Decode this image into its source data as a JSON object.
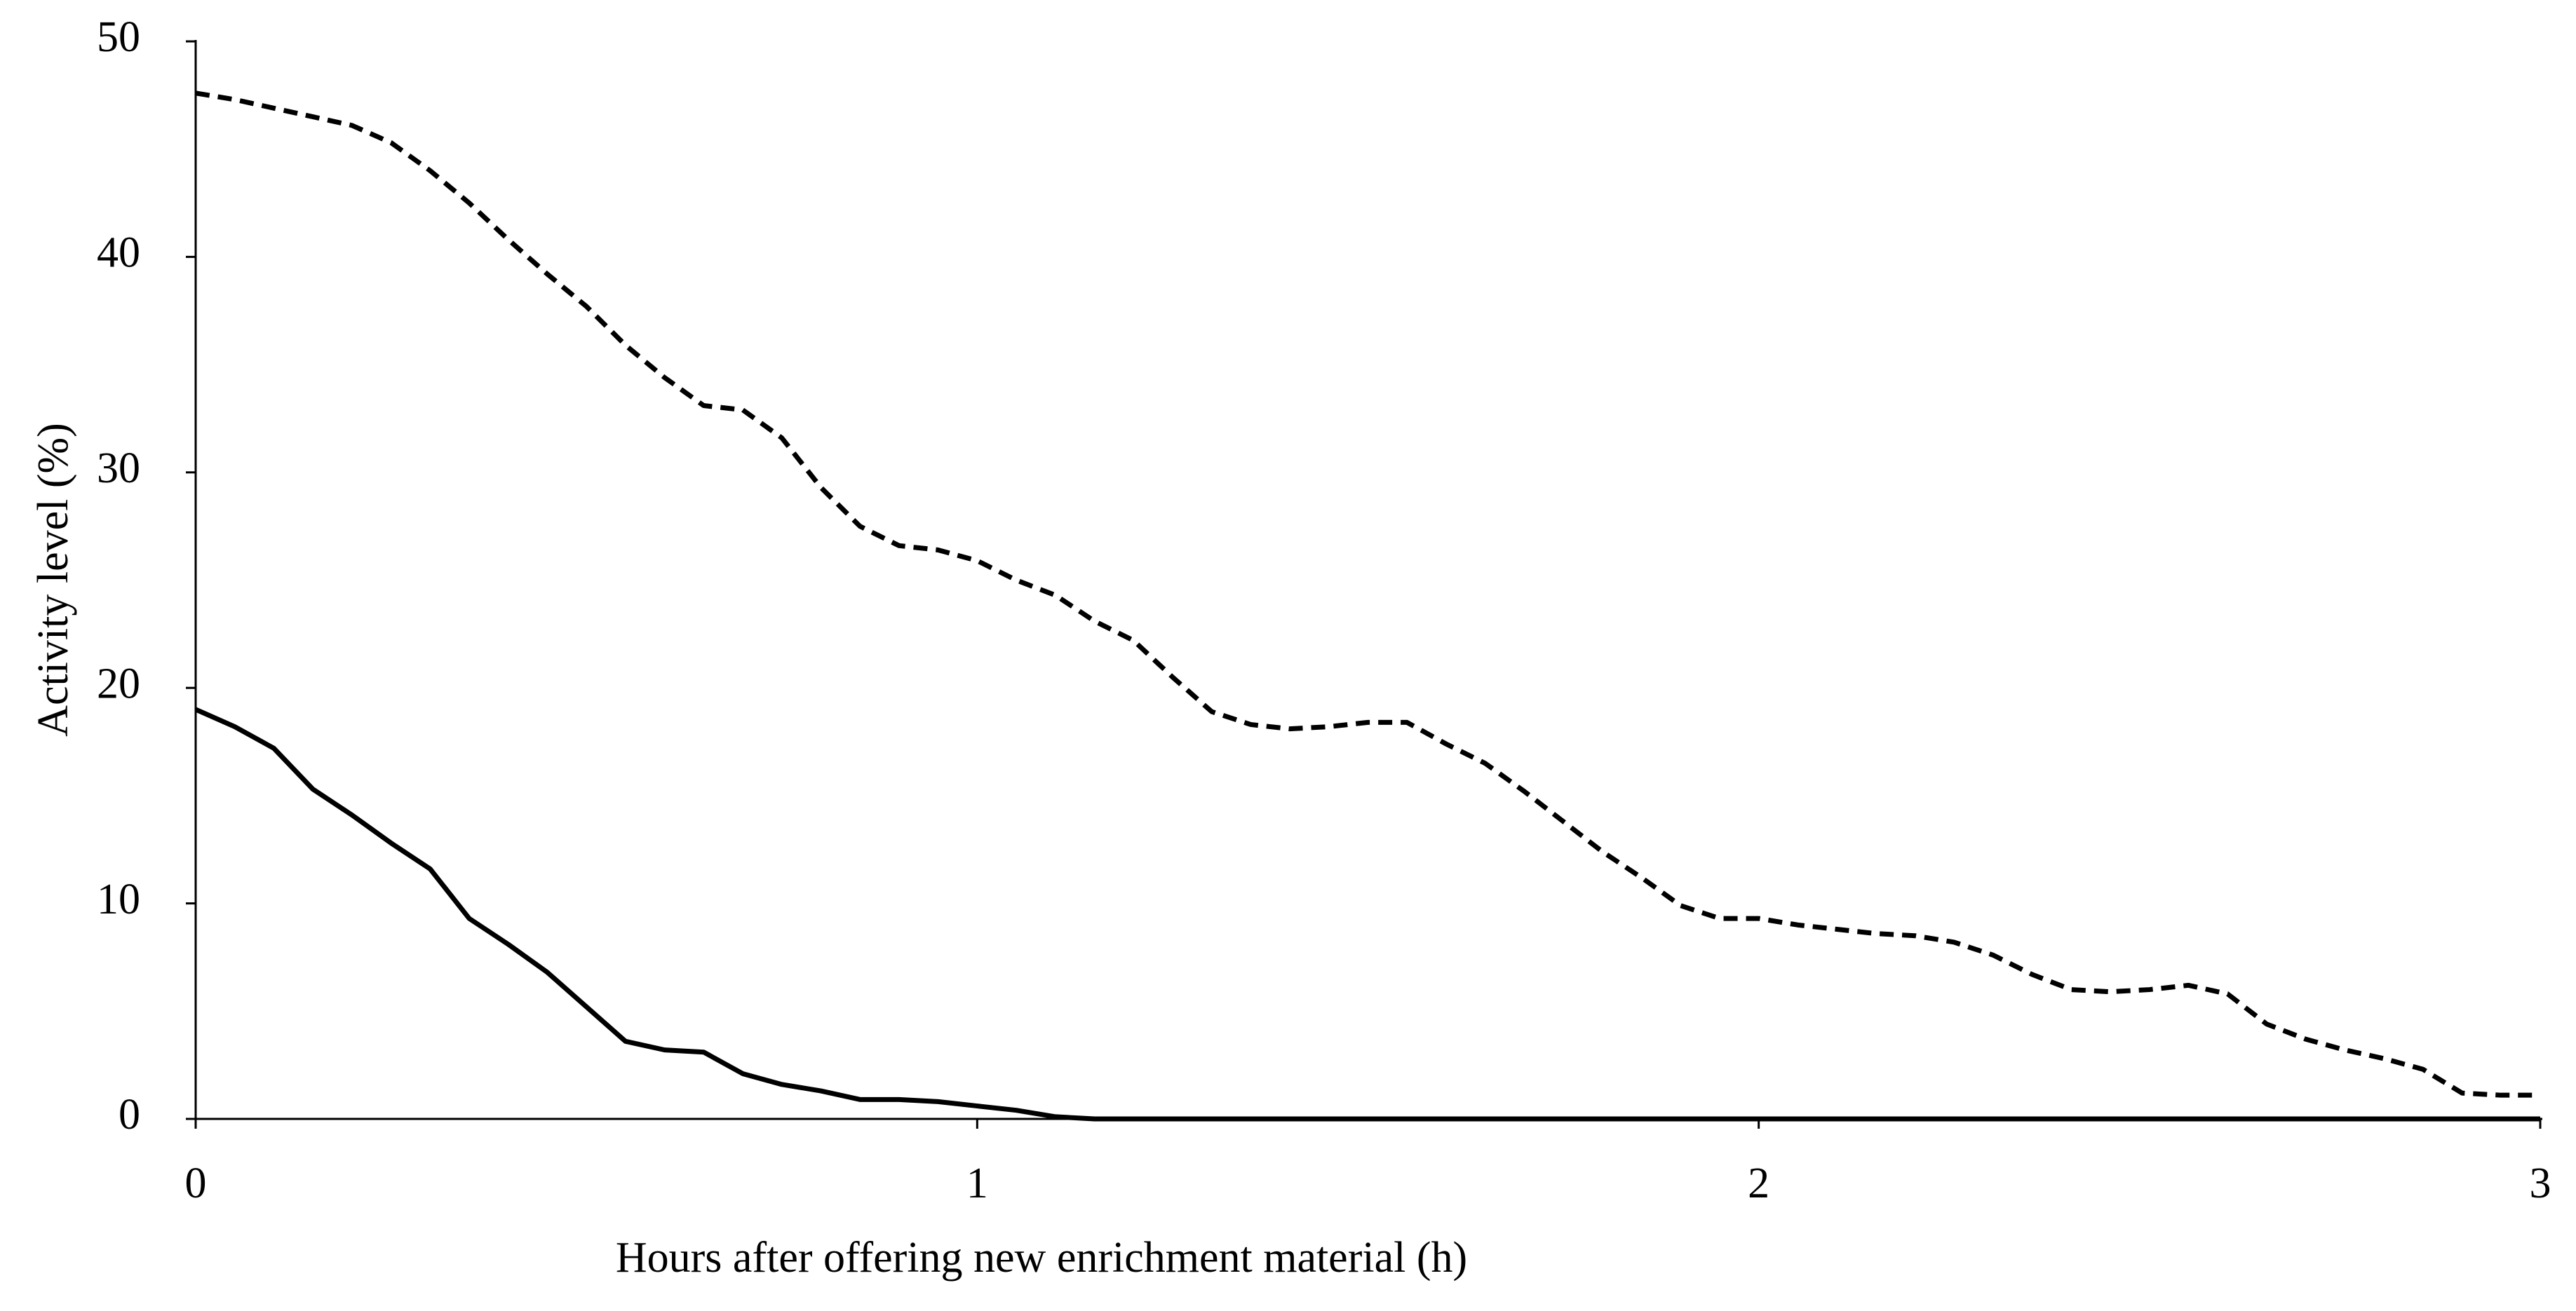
{
  "chart_data": {
    "type": "line",
    "xlabel": "Hours after offering new enrichment material (h)",
    "ylabel": "Activity level (%)",
    "x": [
      0,
      0.05,
      0.1,
      0.15,
      0.2,
      0.25,
      0.3,
      0.35,
      0.4,
      0.45,
      0.5,
      0.55,
      0.6,
      0.65,
      0.7,
      0.75,
      0.8,
      0.85,
      0.9,
      0.95,
      1,
      1.05,
      1.1,
      1.15,
      1.2,
      1.25,
      1.3,
      1.35,
      1.4,
      1.45,
      1.5,
      1.55,
      1.6,
      1.65,
      1.7,
      1.75,
      1.8,
      1.85,
      1.9,
      1.95,
      2,
      2.05,
      2.1,
      2.15,
      2.2,
      2.25,
      2.3,
      2.35,
      2.4,
      2.45,
      2.5,
      2.55,
      2.6,
      2.65,
      2.7,
      2.75,
      2.8,
      2.85,
      2.9,
      2.95,
      3
    ],
    "series": [
      {
        "color": "#000000",
        "style": "dashed",
        "values": [
          47.6,
          47.3,
          46.9,
          46.5,
          46.1,
          45.3,
          44.0,
          42.5,
          40.8,
          39.2,
          37.7,
          35.9,
          34.4,
          33.1,
          32.9,
          31.6,
          29.3,
          27.5,
          26.6,
          26.4,
          25.9,
          25.0,
          24.3,
          23.1,
          22.2,
          20.5,
          18.9,
          18.3,
          18.1,
          18.2,
          18.4,
          18.4,
          17.4,
          16.5,
          15.2,
          13.8,
          12.4,
          11.2,
          9.9,
          9.3,
          9.3,
          9.0,
          8.8,
          8.6,
          8.5,
          8.2,
          7.6,
          6.7,
          6.0,
          5.9,
          6.0,
          6.2,
          5.8,
          4.4,
          3.7,
          3.2,
          2.8,
          2.3,
          1.2,
          1.1,
          1.1
        ]
      },
      {
        "color": "#000000",
        "style": "solid",
        "values": [
          19.0,
          18.2,
          17.2,
          15.3,
          14.1,
          12.8,
          11.6,
          9.3,
          8.1,
          6.8,
          5.2,
          3.6,
          3.2,
          3.1,
          2.1,
          1.6,
          1.3,
          0.9,
          0.9,
          0.8,
          0.6,
          0.4,
          0.1,
          0,
          0,
          0,
          0,
          0,
          0,
          0,
          0,
          0,
          0,
          0,
          0,
          0,
          0,
          0,
          0,
          0,
          0,
          0,
          0,
          0,
          0,
          0,
          0,
          0,
          0,
          0,
          0,
          0,
          0,
          0,
          0,
          0,
          0,
          0,
          0,
          0,
          0
        ]
      }
    ],
    "xlim": [
      0,
      3
    ],
    "xticks": [
      0,
      1,
      2,
      3
    ],
    "ylim": [
      0,
      50
    ],
    "yticks": [
      0,
      10,
      20,
      30,
      40,
      50
    ],
    "grid": false
  }
}
